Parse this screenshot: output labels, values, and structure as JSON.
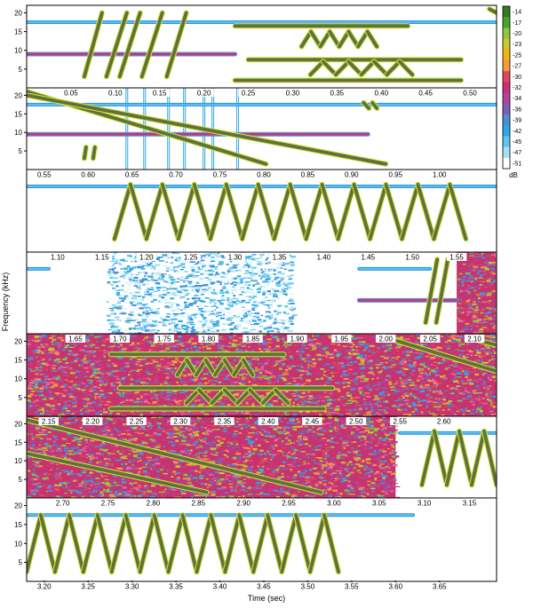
{
  "chart_data": {
    "type": "heatmap",
    "title": "",
    "xlabel": "Time (sec)",
    "ylabel": "Frequency (kHz)",
    "colorbar": {
      "unit": "dB",
      "ticks": [
        -14,
        -17,
        -20,
        -23,
        -25,
        -27,
        -30,
        -32,
        -34,
        -36,
        -39,
        -42,
        -45,
        -47,
        -51
      ],
      "colors": [
        "#2f7d1e",
        "#4aa32b",
        "#8ec63f",
        "#c8c830",
        "#f2b21c",
        "#f39c3c",
        "#e0455a",
        "#cc2f7a",
        "#b0449a",
        "#7f5fb3",
        "#4a8ed6",
        "#2fa7e6",
        "#5fc6ee",
        "#a6e0f2",
        "#ffffff"
      ]
    },
    "rows": [
      {
        "xlim": [
          0.0,
          0.53
        ],
        "ylim": [
          0,
          22
        ],
        "xticks": [],
        "yticks": [
          5,
          10,
          15,
          20
        ],
        "tones": [
          {
            "f": 17.5,
            "t0": 0.0,
            "t1": 0.53,
            "kind": "blue"
          },
          {
            "f": 9.0,
            "t0": 0.0,
            "t1": 0.235,
            "kind": "magenta"
          },
          {
            "f": 16.5,
            "t0": 0.235,
            "t1": 0.43,
            "kind": "green"
          },
          {
            "f": 7.5,
            "t0": 0.25,
            "t1": 0.49,
            "kind": "green"
          },
          {
            "f": 2.0,
            "t0": 0.235,
            "t1": 0.49,
            "kind": "green"
          }
        ],
        "sweeps": [
          {
            "t0": 0.065,
            "f0": 3,
            "t1": 0.085,
            "f1": 20
          },
          {
            "t0": 0.09,
            "f0": 3,
            "t1": 0.113,
            "f1": 20
          },
          {
            "t0": 0.105,
            "f0": 3,
            "t1": 0.128,
            "f1": 20
          },
          {
            "t0": 0.13,
            "f0": 3,
            "t1": 0.153,
            "f1": 20
          },
          {
            "t0": 0.158,
            "f0": 3,
            "t1": 0.18,
            "f1": 20
          },
          {
            "t0": 0.522,
            "f0": 21,
            "t1": 0.53,
            "f1": 20
          }
        ],
        "zigzags": [
          {
            "t0": 0.31,
            "t1": 0.395,
            "fLow": 11,
            "fHigh": 15,
            "n": 4
          },
          {
            "t0": 0.32,
            "t1": 0.435,
            "fLow": 3.5,
            "fHigh": 7,
            "n": 4
          }
        ]
      },
      {
        "xlim": [
          0.0,
          0.53
        ],
        "ylim": [
          0,
          22
        ],
        "xticks": [
          0.05,
          0.1,
          0.15,
          0.2,
          0.25,
          0.3,
          0.35,
          0.4,
          0.45,
          0.5
        ],
        "yticks": [
          5,
          10,
          15,
          20
        ],
        "tones": [
          {
            "f": 17.5,
            "t0": 0.0,
            "t1": 0.53,
            "kind": "blue"
          },
          {
            "f": 9.5,
            "t0": 0.0,
            "t1": 0.385,
            "kind": "magenta"
          }
        ],
        "sweeps": [
          {
            "t0": 0.0,
            "f0": 21,
            "t1": 0.27,
            "f1": 1.5
          },
          {
            "t0": 0.0,
            "f0": 20,
            "t1": 0.405,
            "f1": 1.5
          },
          {
            "t0": 0.38,
            "f0": 18,
            "t1": 0.386,
            "f1": 16.5
          },
          {
            "t0": 0.39,
            "f0": 18,
            "t1": 0.395,
            "f1": 16.5
          },
          {
            "t0": 0.065,
            "f0": 3,
            "t1": 0.067,
            "f1": 6
          },
          {
            "t0": 0.075,
            "f0": 3,
            "t1": 0.077,
            "f1": 6
          }
        ],
        "clicks": [
          0.113,
          0.133,
          0.16,
          0.178,
          0.2,
          0.21,
          0.238
        ]
      },
      {
        "xlim": [
          0.53,
          1.065
        ],
        "ylim": [
          0,
          22
        ],
        "xticks": [
          0.55,
          0.6,
          0.65,
          0.7,
          0.75,
          0.8,
          0.85,
          0.9,
          0.95,
          1.0
        ],
        "yticks": [],
        "tones": [
          {
            "f": 17.5,
            "t0": 0.53,
            "t1": 1.065,
            "kind": "blue"
          }
        ],
        "zigzags": [
          {
            "t0": 0.63,
            "t1": 1.03,
            "fLow": 3.5,
            "fHigh": 18,
            "n": 11
          }
        ]
      },
      {
        "xlim": [
          1.065,
          1.595
        ],
        "ylim": [
          0,
          22
        ],
        "xticks": [
          1.1,
          1.15,
          1.2,
          1.25,
          1.3,
          1.35,
          1.4,
          1.45,
          1.5,
          1.55
        ],
        "yticks": [],
        "tones": [
          {
            "f": 17.5,
            "t0": 1.065,
            "t1": 1.09,
            "kind": "blue"
          },
          {
            "f": 17.5,
            "t0": 1.44,
            "t1": 1.52,
            "kind": "blue"
          },
          {
            "f": 9.0,
            "t0": 1.44,
            "t1": 1.55,
            "kind": "magenta"
          }
        ],
        "sweeps": [
          {
            "t0": 1.515,
            "f0": 3,
            "t1": 1.528,
            "f1": 20
          },
          {
            "t0": 1.527,
            "f0": 3,
            "t1": 1.54,
            "f1": 20
          }
        ],
        "noise": [
          {
            "t0": 1.155,
            "t1": 1.365,
            "palette": "blue"
          },
          {
            "t0": 1.55,
            "t1": 1.595,
            "palette": "full"
          }
        ]
      },
      {
        "xlim": [
          1.595,
          2.125
        ],
        "ylim": [
          0,
          22
        ],
        "xticks": [
          1.65,
          1.7,
          1.75,
          1.8,
          1.85,
          1.9,
          1.95,
          2.0,
          2.05,
          2.1
        ],
        "yticks": [
          5,
          10,
          15,
          20
        ],
        "tones": [
          {
            "f": 16.5,
            "t0": 1.69,
            "t1": 1.885,
            "kind": "green"
          },
          {
            "f": 7.5,
            "t0": 1.7,
            "t1": 1.94,
            "kind": "green"
          },
          {
            "f": 2.0,
            "t0": 1.69,
            "t1": 1.93,
            "kind": "green"
          }
        ],
        "sweeps": [
          {
            "t0": 2.0,
            "f0": 21,
            "t1": 2.125,
            "f1": 12
          },
          {
            "t0": 2.1,
            "f0": 20.5,
            "t1": 2.125,
            "f1": 19
          }
        ],
        "zigzags": [
          {
            "t0": 1.765,
            "t1": 1.85,
            "fLow": 11,
            "fHigh": 15,
            "n": 4
          },
          {
            "t0": 1.775,
            "t1": 1.89,
            "fLow": 3.5,
            "fHigh": 7,
            "n": 4
          }
        ],
        "noise": [
          {
            "t0": 1.595,
            "t1": 2.125,
            "palette": "full"
          }
        ]
      },
      {
        "xlim": [
          2.125,
          2.66
        ],
        "ylim": [
          0,
          22
        ],
        "xticks": [
          2.15,
          2.2,
          2.25,
          2.3,
          2.35,
          2.4,
          2.45,
          2.5,
          2.55,
          2.6
        ],
        "yticks": [
          5,
          10,
          15,
          20
        ],
        "tones": [
          {
            "f": 17.5,
            "t0": 2.55,
            "t1": 2.66,
            "kind": "blue"
          }
        ],
        "sweeps": [
          {
            "t0": 2.125,
            "f0": 21,
            "t1": 2.46,
            "f1": 1.5
          },
          {
            "t0": 2.125,
            "f0": 12,
            "t1": 2.33,
            "f1": 1.5
          }
        ],
        "zigzags": [
          {
            "t0": 2.575,
            "t1": 2.66,
            "fLow": 3.5,
            "fHigh": 18,
            "n": 3
          }
        ],
        "noise": [
          {
            "t0": 2.125,
            "t1": 2.545,
            "palette": "full"
          }
        ]
      },
      {
        "xlim": [
          3.18,
          3.715
        ],
        "ylim": [
          0,
          22
        ],
        "xticks": [
          3.2,
          3.25,
          3.3,
          3.35,
          3.4,
          3.45,
          3.5,
          3.55,
          3.6,
          3.65
        ],
        "yticks": [
          5,
          10,
          15,
          20
        ],
        "topTicks": [
          2.7,
          2.75,
          2.8,
          2.85,
          2.9,
          2.95,
          3.0,
          3.05,
          3.1,
          3.15
        ],
        "tones": [
          {
            "f": 17.5,
            "t0": 3.18,
            "t1": 3.62,
            "kind": "blue"
          }
        ],
        "zigzags": [
          {
            "t0": 3.18,
            "t1": 3.535,
            "fLow": 2.5,
            "fHigh": 17.5,
            "n": 11
          }
        ]
      }
    ]
  }
}
